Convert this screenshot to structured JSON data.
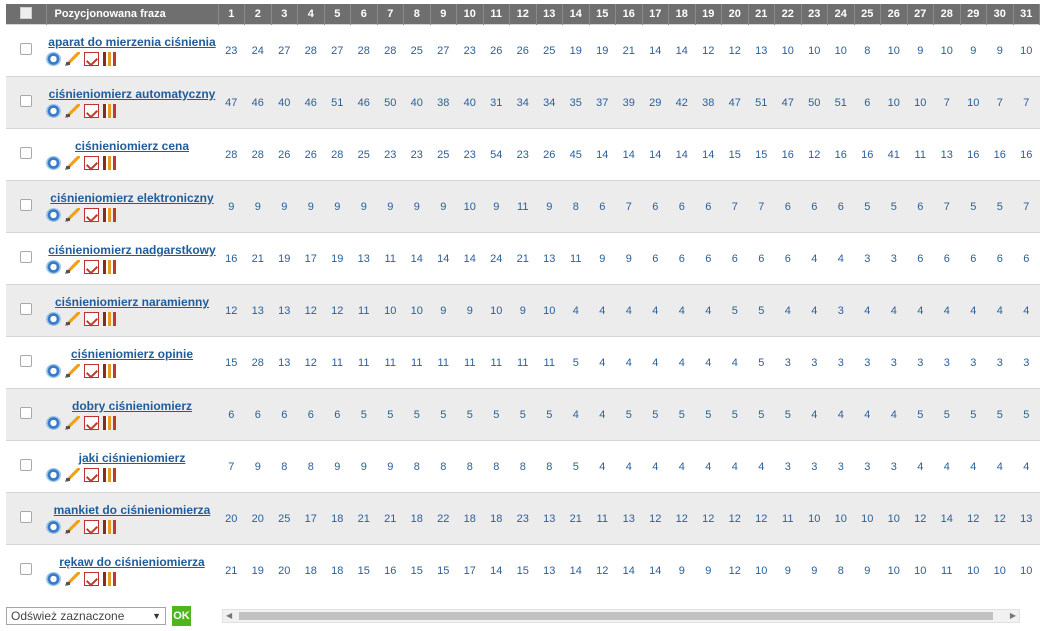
{
  "header": {
    "phrase_col": "Pozycjonowana fraza",
    "days": [
      "1",
      "2",
      "3",
      "4",
      "5",
      "6",
      "7",
      "8",
      "9",
      "10",
      "11",
      "12",
      "13",
      "14",
      "15",
      "16",
      "17",
      "18",
      "19",
      "20",
      "21",
      "22",
      "23",
      "24",
      "25",
      "26",
      "27",
      "28",
      "29",
      "30",
      "31"
    ]
  },
  "rows": [
    {
      "phrase": "aparat do mierzenia ciśnienia",
      "values": [
        23,
        24,
        27,
        28,
        27,
        28,
        28,
        25,
        27,
        23,
        26,
        26,
        25,
        19,
        19,
        21,
        14,
        14,
        12,
        12,
        13,
        10,
        10,
        10,
        8,
        10,
        9,
        10,
        9,
        9,
        10
      ]
    },
    {
      "phrase": "ciśnieniomierz automatyczny",
      "values": [
        47,
        46,
        40,
        46,
        51,
        46,
        50,
        40,
        38,
        40,
        31,
        34,
        34,
        35,
        37,
        39,
        29,
        42,
        38,
        47,
        51,
        47,
        50,
        51,
        6,
        10,
        10,
        7,
        10,
        7,
        7
      ]
    },
    {
      "phrase": "ciśnieniomierz cena",
      "values": [
        28,
        28,
        26,
        26,
        28,
        25,
        23,
        23,
        25,
        23,
        54,
        23,
        26,
        45,
        14,
        14,
        14,
        14,
        14,
        15,
        15,
        16,
        12,
        16,
        16,
        41,
        11,
        13,
        16,
        16,
        16
      ]
    },
    {
      "phrase": "ciśnieniomierz elektroniczny",
      "values": [
        9,
        9,
        9,
        9,
        9,
        9,
        9,
        9,
        9,
        10,
        9,
        11,
        9,
        8,
        6,
        7,
        6,
        6,
        6,
        7,
        7,
        6,
        6,
        6,
        5,
        5,
        6,
        7,
        5,
        5,
        7
      ]
    },
    {
      "phrase": "ciśnieniomierz nadgarstkowy",
      "values": [
        16,
        21,
        19,
        17,
        19,
        13,
        11,
        14,
        14,
        14,
        24,
        21,
        13,
        11,
        9,
        9,
        6,
        6,
        6,
        6,
        6,
        6,
        4,
        4,
        3,
        3,
        6,
        6,
        6,
        6,
        6
      ]
    },
    {
      "phrase": "ciśnieniomierz naramienny",
      "values": [
        12,
        13,
        13,
        12,
        12,
        11,
        10,
        10,
        9,
        9,
        10,
        9,
        10,
        4,
        4,
        4,
        4,
        4,
        4,
        5,
        5,
        4,
        4,
        3,
        4,
        4,
        4,
        4,
        4,
        4,
        4
      ]
    },
    {
      "phrase": "ciśnieniomierz opinie",
      "values": [
        15,
        28,
        13,
        12,
        11,
        11,
        11,
        11,
        11,
        11,
        11,
        11,
        11,
        5,
        4,
        4,
        4,
        4,
        4,
        4,
        5,
        3,
        3,
        3,
        3,
        3,
        3,
        3,
        3,
        3,
        3
      ]
    },
    {
      "phrase": "dobry ciśnieniomierz",
      "values": [
        6,
        6,
        6,
        6,
        6,
        5,
        5,
        5,
        5,
        5,
        5,
        5,
        5,
        4,
        4,
        5,
        5,
        5,
        5,
        5,
        5,
        5,
        4,
        4,
        4,
        4,
        5,
        5,
        5,
        5,
        5
      ]
    },
    {
      "phrase": "jaki ciśnieniomierz",
      "values": [
        7,
        9,
        8,
        8,
        9,
        9,
        9,
        8,
        8,
        8,
        8,
        8,
        8,
        5,
        4,
        4,
        4,
        4,
        4,
        4,
        4,
        3,
        3,
        3,
        3,
        3,
        4,
        4,
        4,
        4,
        4
      ]
    },
    {
      "phrase": "mankiet do ciśnieniomierza",
      "values": [
        20,
        20,
        25,
        17,
        18,
        21,
        21,
        18,
        22,
        18,
        18,
        23,
        13,
        21,
        11,
        13,
        12,
        12,
        12,
        12,
        12,
        11,
        10,
        10,
        10,
        10,
        12,
        14,
        12,
        12,
        13
      ]
    },
    {
      "phrase": "rękaw do ciśnieniomierza",
      "values": [
        21,
        19,
        20,
        18,
        18,
        15,
        16,
        15,
        15,
        17,
        14,
        15,
        13,
        14,
        12,
        14,
        14,
        9,
        9,
        12,
        10,
        9,
        9,
        8,
        9,
        10,
        10,
        11,
        10,
        10,
        10
      ]
    }
  ],
  "footer": {
    "select_value": "Odśwież zaznaczone",
    "ok_label": "OK"
  }
}
